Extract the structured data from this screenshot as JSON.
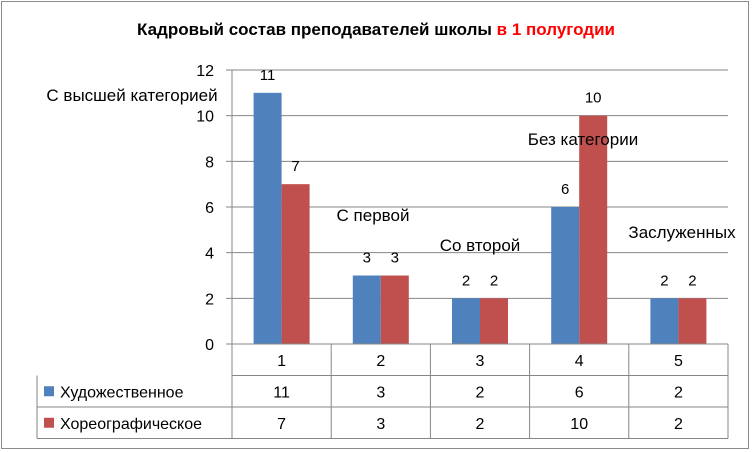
{
  "chart_data": {
    "type": "bar",
    "title_main": "Кадровый состав преподавателей школы",
    "title_highlight": "в 1 полугодии",
    "categories": [
      "1",
      "2",
      "3",
      "4",
      "5"
    ],
    "series": [
      {
        "name": "Художественное",
        "values": [
          11,
          3,
          2,
          6,
          2
        ],
        "color": "#4f81bd"
      },
      {
        "name": "Хореографическое",
        "values": [
          7,
          3,
          2,
          10,
          2
        ],
        "color": "#c0504d"
      }
    ],
    "ylim": [
      0,
      12
    ],
    "yticks": [
      0,
      2,
      4,
      6,
      8,
      10,
      12
    ],
    "annotations": [
      "С высшей категорией",
      "С первой",
      "Со второй",
      "Без категории",
      "Заслуженных"
    ],
    "grid": true,
    "legend": "data-table",
    "title_color": "#000000",
    "highlight_color": "#ff0000"
  }
}
